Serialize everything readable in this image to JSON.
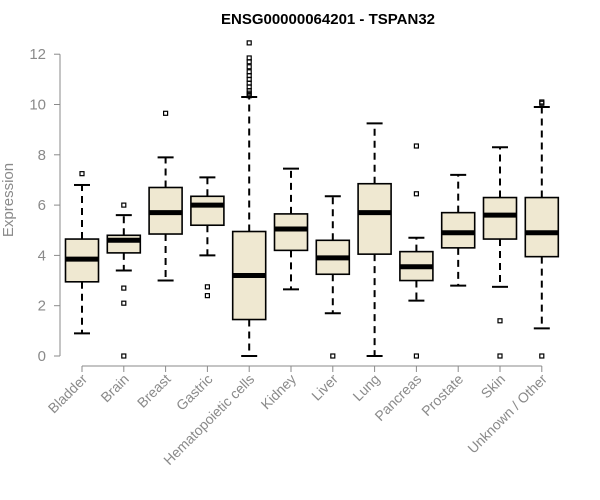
{
  "chart_data": {
    "type": "boxplot",
    "title": "ENSG00000064201 - TSPAN32",
    "xlabel": "",
    "ylabel": "Expression",
    "ylim": [
      0,
      12.5
    ],
    "yticks": [
      0,
      2,
      4,
      6,
      8,
      10,
      12
    ],
    "colors": {
      "box_fill": "#efe8d1",
      "box_stroke": "#000000",
      "axis": "#8a8a8a",
      "text": "#8a8a8a"
    },
    "categories": [
      "Bladder",
      "Brain",
      "Breast",
      "Gastric",
      "Hematopoietic cells",
      "Kidney",
      "Liver",
      "Lung",
      "Pancreas",
      "Prostate",
      "Skin",
      "Unknown / Other"
    ],
    "boxes": [
      {
        "category": "Bladder",
        "whisker_low": 0.9,
        "q1": 2.95,
        "median": 3.85,
        "q3": 4.65,
        "whisker_high": 6.8,
        "outliers": [
          7.25
        ]
      },
      {
        "category": "Brain",
        "whisker_low": 3.4,
        "q1": 4.1,
        "median": 4.6,
        "q3": 4.8,
        "whisker_high": 5.6,
        "outliers": [
          6.0,
          2.7,
          2.1,
          0.0
        ]
      },
      {
        "category": "Breast",
        "whisker_low": 3.0,
        "q1": 4.85,
        "median": 5.7,
        "q3": 6.7,
        "whisker_high": 7.9,
        "outliers": [
          9.65
        ]
      },
      {
        "category": "Gastric",
        "whisker_low": 4.0,
        "q1": 5.2,
        "median": 6.0,
        "q3": 6.35,
        "whisker_high": 7.1,
        "outliers": [
          2.75,
          2.4
        ]
      },
      {
        "category": "Hematopoietic cells",
        "whisker_low": 0.0,
        "q1": 1.45,
        "median": 3.2,
        "q3": 4.95,
        "whisker_high": 10.3,
        "outliers": [
          10.35,
          10.45,
          10.55,
          10.7,
          10.85,
          11.0,
          11.15,
          11.3,
          11.5,
          11.7,
          11.85,
          12.45
        ]
      },
      {
        "category": "Kidney",
        "whisker_low": 2.65,
        "q1": 4.2,
        "median": 5.05,
        "q3": 5.65,
        "whisker_high": 7.45,
        "outliers": []
      },
      {
        "category": "Liver",
        "whisker_low": 1.7,
        "q1": 3.25,
        "median": 3.9,
        "q3": 4.6,
        "whisker_high": 6.35,
        "outliers": [
          0.0
        ]
      },
      {
        "category": "Lung",
        "whisker_low": 0.0,
        "q1": 4.05,
        "median": 5.7,
        "q3": 6.85,
        "whisker_high": 9.25,
        "outliers": []
      },
      {
        "category": "Pancreas",
        "whisker_low": 2.2,
        "q1": 3.0,
        "median": 3.55,
        "q3": 4.15,
        "whisker_high": 4.7,
        "outliers": [
          8.35,
          6.45,
          0.0
        ]
      },
      {
        "category": "Prostate",
        "whisker_low": 2.8,
        "q1": 4.3,
        "median": 4.9,
        "q3": 5.7,
        "whisker_high": 7.2,
        "outliers": []
      },
      {
        "category": "Skin",
        "whisker_low": 2.75,
        "q1": 4.65,
        "median": 5.6,
        "q3": 6.3,
        "whisker_high": 8.3,
        "outliers": [
          1.4,
          0.0
        ]
      },
      {
        "category": "Unknown / Other",
        "whisker_low": 1.1,
        "q1": 3.95,
        "median": 4.9,
        "q3": 6.3,
        "whisker_high": 9.9,
        "outliers": [
          10.05,
          10.1,
          0.0
        ]
      }
    ]
  }
}
